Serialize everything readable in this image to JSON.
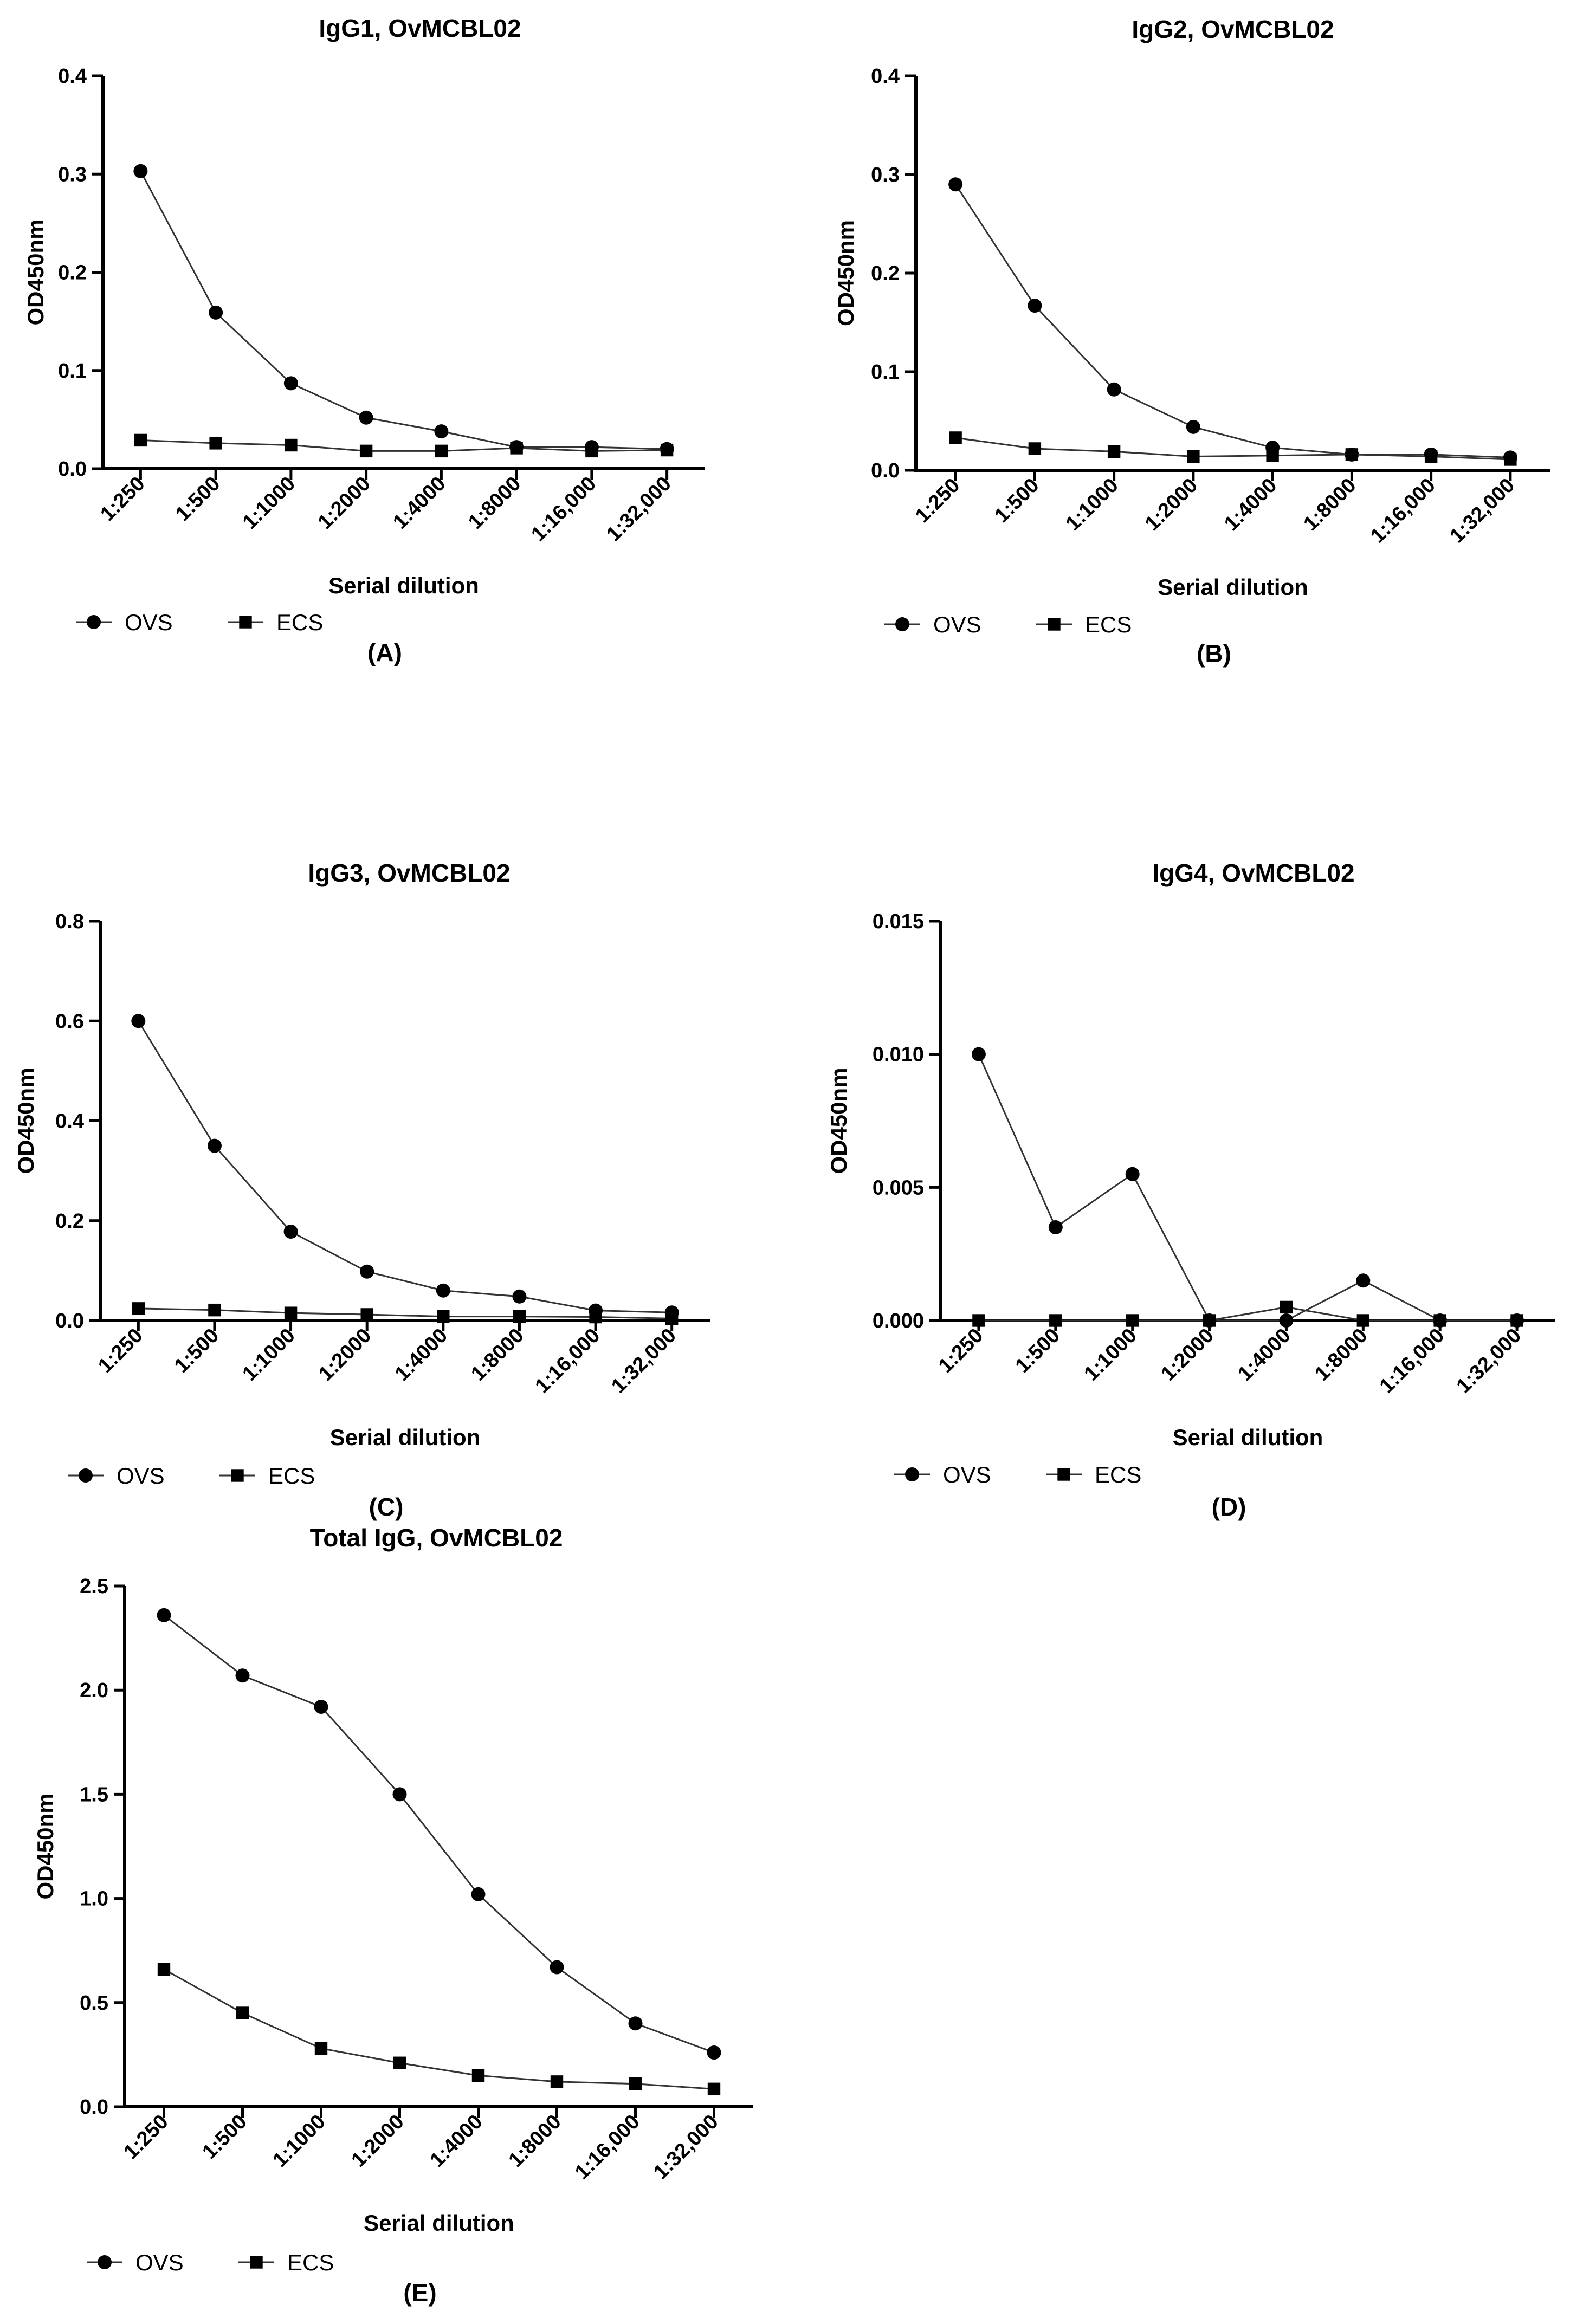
{
  "colors": {
    "axis": "#000000",
    "line": "#333333",
    "marker": "#000000",
    "background": "#ffffff"
  },
  "chart_data": [
    {
      "type": "line",
      "panel_label": "(A)",
      "title": "IgG1, OvMCBL02",
      "xlabel": "Serial dilution",
      "ylabel": "OD450nm",
      "ylim": [
        0,
        0.4
      ],
      "yticks": [
        0.0,
        0.1,
        0.2,
        0.3,
        0.4
      ],
      "ytick_labels": [
        "0.0",
        "0.1",
        "0.2",
        "0.3",
        "0.4"
      ],
      "categories": [
        "1:250",
        "1:500",
        "1:1000",
        "1:2000",
        "1:4000",
        "1:8000",
        "1:16,000",
        "1:32,000"
      ],
      "series": [
        {
          "name": "OVS",
          "marker": "circle",
          "values": [
            0.303,
            0.159,
            0.087,
            0.052,
            0.038,
            0.022,
            0.022,
            0.02
          ]
        },
        {
          "name": "ECS",
          "marker": "square",
          "values": [
            0.029,
            0.026,
            0.024,
            0.018,
            0.018,
            0.021,
            0.018,
            0.019
          ]
        }
      ],
      "legend": "bottom-left"
    },
    {
      "type": "line",
      "panel_label": "(B)",
      "title": "IgG2, OvMCBL02",
      "xlabel": "Serial dilution",
      "ylabel": "OD450nm",
      "ylim": [
        0,
        0.4
      ],
      "yticks": [
        0.0,
        0.1,
        0.2,
        0.3,
        0.4
      ],
      "ytick_labels": [
        "0.0",
        "0.1",
        "0.2",
        "0.3",
        "0.4"
      ],
      "categories": [
        "1:250",
        "1:500",
        "1:1000",
        "1:2000",
        "1:4000",
        "1:8000",
        "1:16,000",
        "1:32,000"
      ],
      "series": [
        {
          "name": "OVS",
          "marker": "circle",
          "values": [
            0.29,
            0.167,
            0.082,
            0.044,
            0.023,
            0.016,
            0.016,
            0.013
          ]
        },
        {
          "name": "ECS",
          "marker": "square",
          "values": [
            0.033,
            0.022,
            0.019,
            0.014,
            0.015,
            0.016,
            0.014,
            0.011
          ]
        }
      ],
      "legend": "bottom-left"
    },
    {
      "type": "line",
      "panel_label": "(C)",
      "title": "IgG3, OvMCBL02",
      "xlabel": "Serial dilution",
      "ylabel": "OD450nm",
      "ylim": [
        0,
        0.8
      ],
      "yticks": [
        0.0,
        0.2,
        0.4,
        0.6,
        0.8
      ],
      "ytick_labels": [
        "0.0",
        "0.2",
        "0.4",
        "0.6",
        "0.8"
      ],
      "categories": [
        "1:250",
        "1:500",
        "1:1000",
        "1:2000",
        "1:4000",
        "1:8000",
        "1:16,000",
        "1:32,000"
      ],
      "series": [
        {
          "name": "OVS",
          "marker": "circle",
          "values": [
            0.6,
            0.35,
            0.178,
            0.098,
            0.06,
            0.048,
            0.02,
            0.016
          ]
        },
        {
          "name": "ECS",
          "marker": "square",
          "values": [
            0.024,
            0.021,
            0.015,
            0.012,
            0.008,
            0.008,
            0.007,
            0.004
          ]
        }
      ],
      "legend": "bottom-left"
    },
    {
      "type": "line",
      "panel_label": "(D)",
      "title": "IgG4, OvMCBL02",
      "xlabel": "Serial dilution",
      "ylabel": "OD450nm",
      "ylim": [
        0,
        0.015
      ],
      "yticks": [
        0.0,
        0.005,
        0.01,
        0.015
      ],
      "ytick_labels": [
        "0.000",
        "0.005",
        "0.010",
        "0.015"
      ],
      "categories": [
        "1:250",
        "1:500",
        "1:1000",
        "1:2000",
        "1:4000",
        "1:8000",
        "1:16,000",
        "1:32,000"
      ],
      "series": [
        {
          "name": "OVS",
          "marker": "circle",
          "values": [
            0.01,
            0.0035,
            0.0055,
            0.0,
            0.0,
            0.0015,
            0.0,
            0.0
          ]
        },
        {
          "name": "ECS",
          "marker": "square",
          "values": [
            0.0,
            0.0,
            0.0,
            0.0,
            0.0005,
            0.0,
            0.0,
            0.0
          ]
        }
      ],
      "legend": "bottom-left"
    },
    {
      "type": "line",
      "panel_label": "(E)",
      "title": "Total IgG, OvMCBL02",
      "xlabel": "Serial dilution",
      "ylabel": "OD450nm",
      "ylim": [
        0,
        2.5
      ],
      "yticks": [
        0.0,
        0.5,
        1.0,
        1.5,
        2.0,
        2.5
      ],
      "ytick_labels": [
        "0.0",
        "0.5",
        "1.0",
        "1.5",
        "2.0",
        "2.5"
      ],
      "categories": [
        "1:250",
        "1:500",
        "1:1000",
        "1:2000",
        "1:4000",
        "1:8000",
        "1:16,000",
        "1:32,000"
      ],
      "series": [
        {
          "name": "OVS",
          "marker": "circle",
          "values": [
            2.36,
            2.07,
            1.92,
            1.5,
            1.02,
            0.67,
            0.4,
            0.26
          ]
        },
        {
          "name": "ECS",
          "marker": "square",
          "values": [
            0.66,
            0.45,
            0.28,
            0.21,
            0.15,
            0.12,
            0.11,
            0.085
          ]
        }
      ],
      "legend": "bottom-left"
    }
  ]
}
